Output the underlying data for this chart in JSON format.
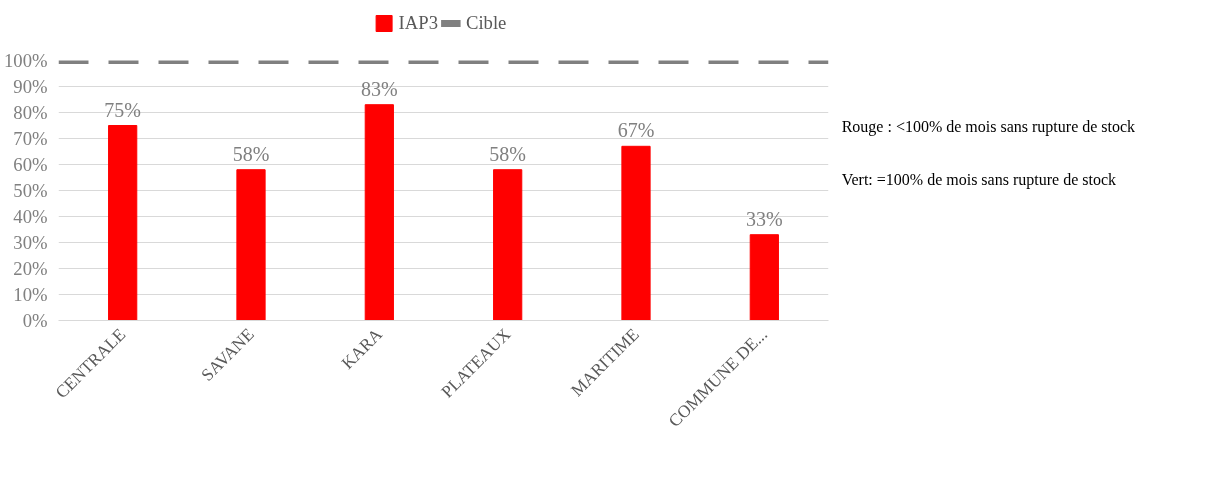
{
  "chart_data": {
    "type": "bar",
    "categories": [
      "CENTRALE",
      "SAVANE",
      "KARA",
      "PLATEAUX",
      "MARITIME",
      "COMMUNE DE..."
    ],
    "series": [
      {
        "name": "IAP3",
        "color": "#ff0000",
        "values": [
          75,
          58,
          83,
          58,
          67,
          33
        ],
        "value_labels": [
          "75%",
          "58%",
          "83%",
          "58%",
          "67%",
          "33%"
        ]
      }
    ],
    "ylim": [
      0,
      100
    ],
    "yticks": [
      {
        "value": 0,
        "label": "0%"
      },
      {
        "value": 10,
        "label": "10%"
      },
      {
        "value": 20,
        "label": "20%"
      },
      {
        "value": 30,
        "label": "30%"
      },
      {
        "value": 40,
        "label": "40%"
      },
      {
        "value": 50,
        "label": "50%"
      },
      {
        "value": 60,
        "label": "60%"
      },
      {
        "value": 70,
        "label": "70%"
      },
      {
        "value": 80,
        "label": "80%"
      },
      {
        "value": 90,
        "label": "90%"
      },
      {
        "value": 100,
        "label": "100%"
      }
    ],
    "ref_lines": [
      {
        "axis": "y",
        "value": 100,
        "label": "Cible",
        "color": "#808080",
        "line_style": "dashed"
      }
    ],
    "grid": "y",
    "legend": "top",
    "annotations": [
      "Rouge : <100% de mois sans rupture de stock",
      "Vert: =100% de mois sans rupture de stock"
    ]
  }
}
